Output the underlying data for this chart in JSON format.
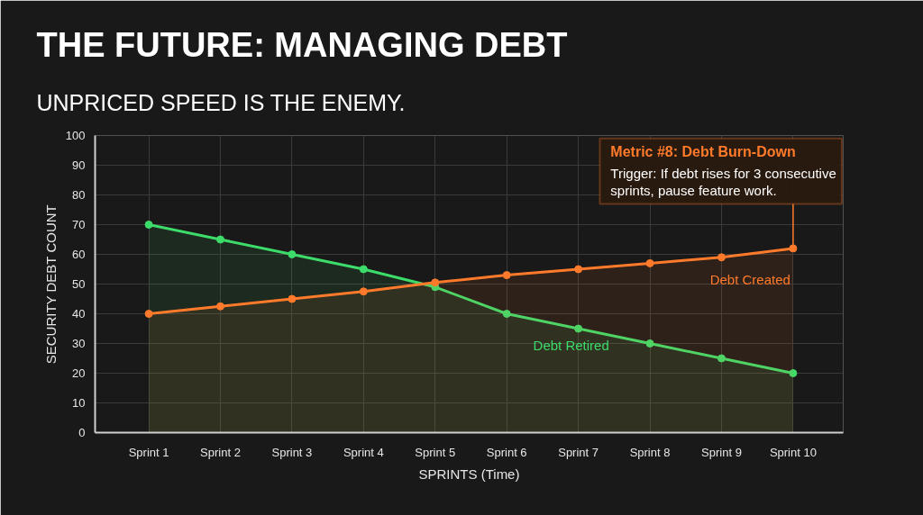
{
  "chart_data": {
    "type": "area",
    "title": "THE FUTURE: MANAGING DEBT",
    "subtitle": "UNPRICED SPEED IS THE ENEMY.",
    "xlabel": "SPRINTS (Time)",
    "ylabel": "SECURITY DEBT COUNT",
    "categories": [
      "Sprint 1",
      "Sprint 2",
      "Sprint 3",
      "Sprint 4",
      "Sprint 5",
      "Sprint 6",
      "Sprint 7",
      "Sprint 8",
      "Sprint 9",
      "Sprint 10"
    ],
    "series": [
      {
        "name": "Debt Retired",
        "color": "#3ddc6a",
        "values": [
          70,
          65,
          60,
          55,
          49,
          40,
          35,
          30,
          25,
          20
        ]
      },
      {
        "name": "Debt Created",
        "color": "#ff7a2a",
        "values": [
          40,
          42.5,
          45,
          47.5,
          50.5,
          53,
          55,
          57,
          59,
          62
        ]
      }
    ],
    "ylim": [
      0,
      100
    ],
    "yticks": [
      0,
      10,
      20,
      30,
      40,
      50,
      60,
      70,
      80,
      90,
      100
    ],
    "grid": true,
    "marker": "circle",
    "line_style": "solid",
    "annotations": [
      "Metric #8: Debt Burn-Down",
      {
        "text": "Trigger: If debt rises for 3 consecutive sprints, pause feature work.",
        "x": "Sprint 10",
        "y": 62
      }
    ]
  }
}
